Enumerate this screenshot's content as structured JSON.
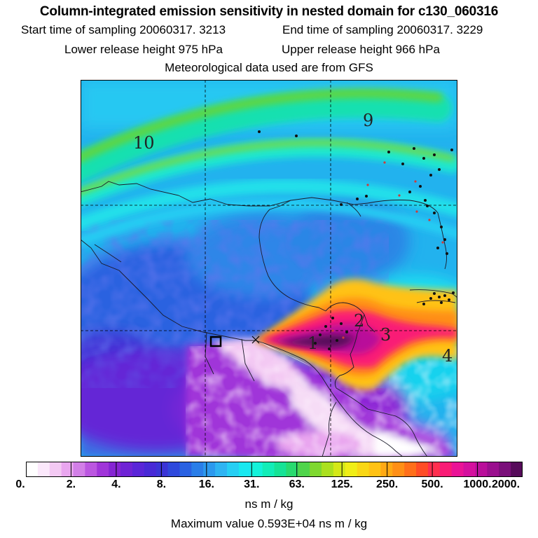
{
  "title": "Column-integrated emission sensitivity in nested domain for c130_060316",
  "line2": {
    "start_label": "Start time of sampling",
    "start_value": "20060317.  3213",
    "end_label": "End time of sampling",
    "end_value": "20060317.  3229"
  },
  "line3": {
    "lower_label": "Lower release height",
    "lower_value": "975 hPa",
    "upper_label": "Upper release height",
    "upper_value": "966 hPa"
  },
  "line4": "Meteorological data used are from GFS",
  "map": {
    "trajectory_labels": [
      "1",
      "2",
      "3",
      "4",
      "9",
      "10"
    ],
    "release_marker_icon": "square-marker-icon"
  },
  "colorbar": {
    "labels": [
      "0.",
      "2.",
      "4.",
      "8.",
      "16.",
      "31.",
      "63.",
      "125.",
      "250.",
      "500.",
      "1000.",
      "2000."
    ],
    "colors": [
      "#ffffff",
      "#fbe8fb",
      "#f3c9f3",
      "#e9a6ef",
      "#d27fe7",
      "#bb57e0",
      "#a035d9",
      "#8625d3",
      "#6f23d5",
      "#5a25d8",
      "#4829d6",
      "#3b34d6",
      "#2f49dc",
      "#2a62e2",
      "#2a7ee8",
      "#2c99ee",
      "#2fb4f2",
      "#27cff4",
      "#1ae8f0",
      "#14f2da",
      "#12edb8",
      "#16e396",
      "#28da6f",
      "#4fd44b",
      "#7fd82f",
      "#abe01f",
      "#d4e818",
      "#f0ee16",
      "#f9d715",
      "#ffc214",
      "#ffa914",
      "#ff8f16",
      "#ff6f1a",
      "#ff4d26",
      "#ff2f4e",
      "#f91c76",
      "#ea1396",
      "#d4109e",
      "#b90f9a",
      "#9a0f8e",
      "#7a0f7a",
      "#560b5a"
    ],
    "units": "ns m / kg"
  },
  "max_value": {
    "label": "Maximum value",
    "value": "0.593E+04 ns m / kg"
  }
}
